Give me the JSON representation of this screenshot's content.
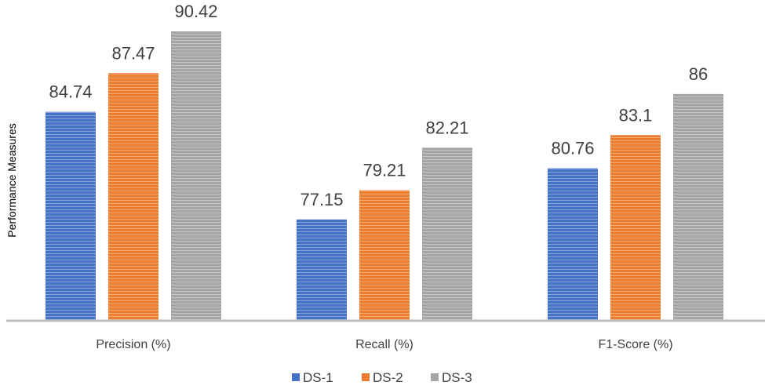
{
  "chart_data": {
    "type": "bar",
    "title": "",
    "xlabel": "",
    "ylabel": "Performance Measures",
    "categories": [
      "Precision (%)",
      "Recall (%)",
      "F1-Score (%)"
    ],
    "series": [
      {
        "name": "DS-1",
        "color": "#4472C4",
        "values": [
          84.74,
          77.15,
          80.76
        ]
      },
      {
        "name": "DS-2",
        "color": "#ED7D31",
        "values": [
          87.47,
          79.21,
          83.1
        ]
      },
      {
        "name": "DS-3",
        "color": "#A5A5A5",
        "values": [
          90.42,
          82.21,
          86
        ]
      }
    ],
    "value_labels": [
      [
        "84.74",
        "77.15",
        "80.76"
      ],
      [
        "87.47",
        "79.21",
        "83.1"
      ],
      [
        "90.42",
        "82.21",
        "86"
      ]
    ],
    "ylim": [
      70,
      92
    ],
    "grid": false,
    "legend_position": "bottom"
  }
}
